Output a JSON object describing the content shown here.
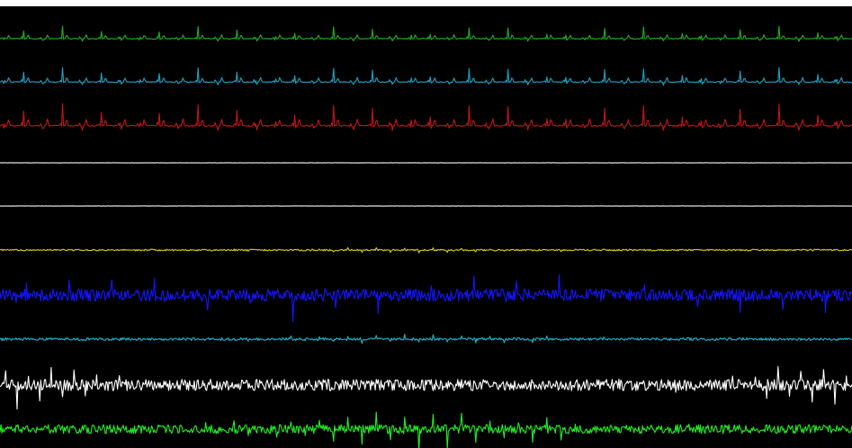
{
  "chart_data": {
    "type": "line",
    "title": "",
    "xlabel": "",
    "ylabel": "",
    "grid": false,
    "legend": "none",
    "background": "#000000",
    "samples_per_trace": 900,
    "series": [
      {
        "color": "#1db11d",
        "waveform": "cardiac",
        "beats": 44,
        "amplitude": 0.9,
        "noise": 0.03
      },
      {
        "color": "#1aa3c4",
        "waveform": "cardiac",
        "beats": 44,
        "amplitude": 1.0,
        "noise": 0.03
      },
      {
        "color": "#c41414",
        "waveform": "cardiac",
        "beats": 44,
        "amplitude": 1.0,
        "noise": 0.03
      },
      {
        "color": "#dcdcdc",
        "waveform": "flat",
        "amplitude": 0.05,
        "noise": 0.04
      },
      {
        "color": "#dcdcdc",
        "waveform": "flat",
        "amplitude": 0.05,
        "noise": 0.04
      },
      {
        "color": "#d4cf1a",
        "waveform": "spiky",
        "beats": 60,
        "amplitude": 0.25,
        "noise": 0.08
      },
      {
        "color": "#1414ff",
        "waveform": "spiky",
        "beats": 80,
        "amplitude": 1.0,
        "noise": 0.25
      },
      {
        "color": "#18b7cc",
        "waveform": "spiky",
        "beats": 60,
        "amplitude": 0.5,
        "noise": 0.15
      },
      {
        "color": "#ffffff",
        "waveform": "spiky",
        "beats": 75,
        "amplitude": 0.9,
        "noise": 0.25
      },
      {
        "color": "#22ee22",
        "waveform": "spiky",
        "beats": 60,
        "amplitude": 1.0,
        "noise": 0.2
      }
    ]
  }
}
